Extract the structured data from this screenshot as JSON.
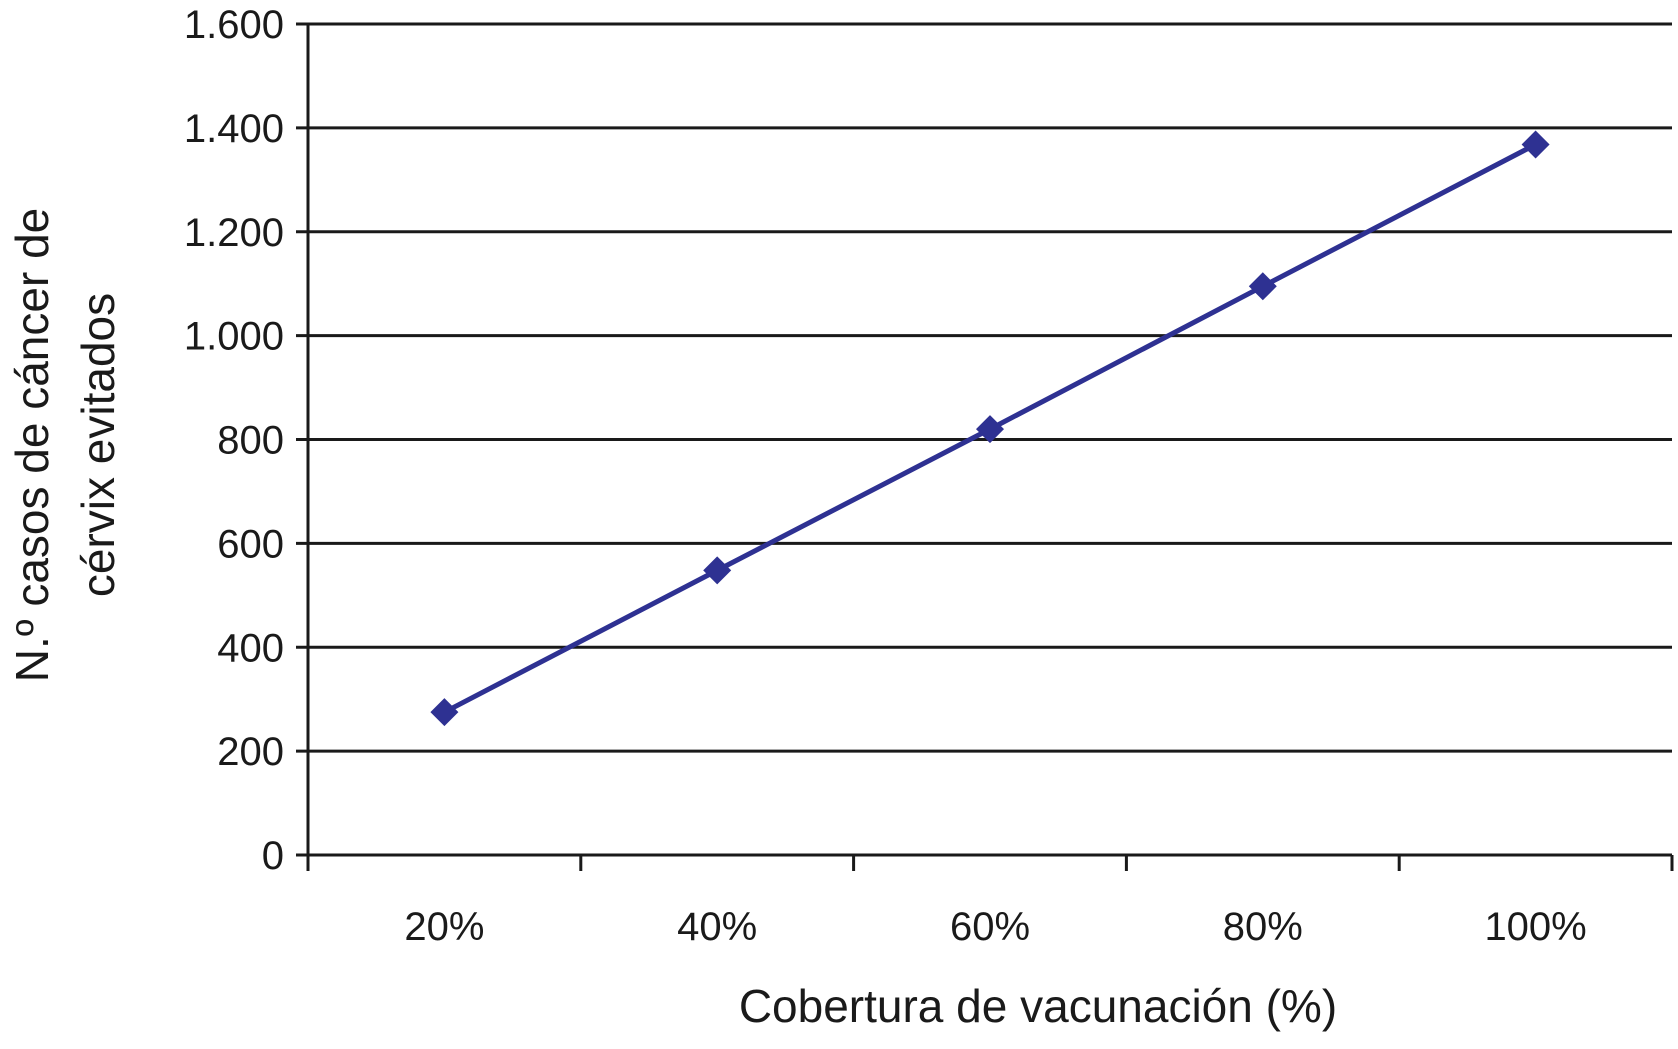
{
  "chart_data": {
    "type": "line",
    "title": "",
    "xlabel": "Cobertura de vacunación (%)",
    "ylabel_lines": [
      "N.º casos de cáncer de",
      "cérvix evitados"
    ],
    "categories": [
      "20%",
      "40%",
      "60%",
      "80%",
      "100%"
    ],
    "series": [
      {
        "values": [
          275,
          548,
          820,
          1095,
          1368
        ],
        "color": "#2e3192",
        "marker": "diamond"
      }
    ],
    "ylim": [
      0,
      1600
    ],
    "yticks": [
      0,
      200,
      400,
      600,
      800,
      1000,
      1200,
      1400,
      1600
    ],
    "ytick_labels": [
      "0",
      "200",
      "400",
      "600",
      "800",
      "1.000",
      "1.200",
      "1.400",
      "1.600"
    ],
    "grid": "horizontal",
    "legend": "none",
    "axis_color": "#1a1a1a",
    "grid_color": "#1a1a1a"
  }
}
